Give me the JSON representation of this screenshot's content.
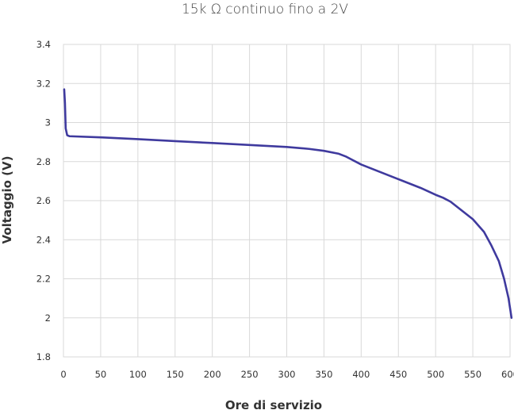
{
  "chart_data": {
    "type": "line",
    "title": "15k Ω continuo fino a 2V",
    "xlabel": "Ore di servizio",
    "ylabel": "Voltaggio (V)",
    "xlim": [
      0,
      600
    ],
    "ylim": [
      1.8,
      3.4
    ],
    "x_ticks": [
      0,
      50,
      100,
      150,
      200,
      250,
      300,
      350,
      400,
      450,
      500,
      550,
      600
    ],
    "y_ticks": [
      1.8,
      2,
      2.2,
      2.4,
      2.6,
      2.8,
      3,
      3.2,
      3.4
    ],
    "x_tick_labels": [
      "0",
      "50",
      "100",
      "150",
      "200",
      "250",
      "300",
      "350",
      "400",
      "450",
      "500",
      "550",
      "600"
    ],
    "y_tick_labels": [
      "1.8",
      "2",
      "2.2",
      "2.4",
      "2.6",
      "2.8",
      "3",
      "3.2",
      "3.4"
    ],
    "grid": true,
    "legend": false,
    "series": [
      {
        "color": "#3f3a9e",
        "points": [
          [
            1,
            3.17
          ],
          [
            2,
            3.1
          ],
          [
            3,
            2.97
          ],
          [
            5,
            2.935
          ],
          [
            8,
            2.93
          ],
          [
            50,
            2.924
          ],
          [
            100,
            2.915
          ],
          [
            150,
            2.905
          ],
          [
            200,
            2.895
          ],
          [
            250,
            2.885
          ],
          [
            300,
            2.875
          ],
          [
            330,
            2.865
          ],
          [
            350,
            2.855
          ],
          [
            370,
            2.84
          ],
          [
            380,
            2.825
          ],
          [
            400,
            2.785
          ],
          [
            450,
            2.71
          ],
          [
            480,
            2.665
          ],
          [
            500,
            2.63
          ],
          [
            510,
            2.615
          ],
          [
            520,
            2.595
          ],
          [
            530,
            2.565
          ],
          [
            550,
            2.505
          ],
          [
            565,
            2.44
          ],
          [
            575,
            2.37
          ],
          [
            585,
            2.29
          ],
          [
            592,
            2.2
          ],
          [
            598,
            2.1
          ],
          [
            602,
            2.0
          ]
        ]
      }
    ]
  }
}
